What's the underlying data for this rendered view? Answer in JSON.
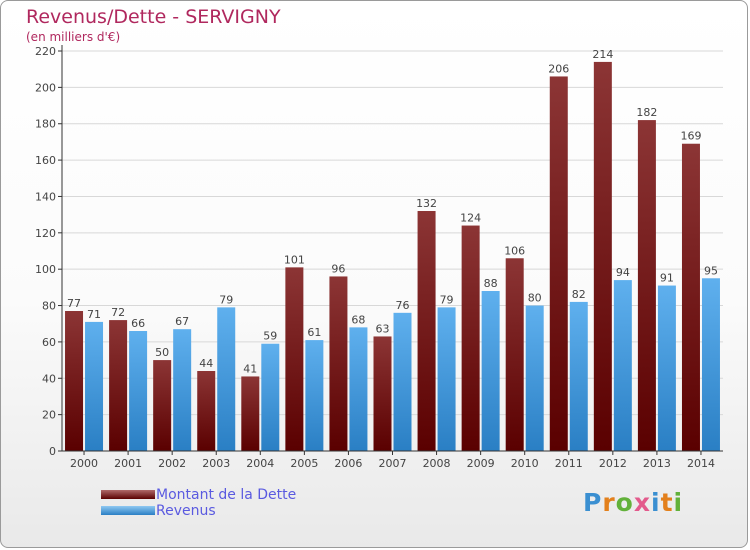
{
  "title": "Revenus/Dette - SERVIGNY",
  "subtitle": "(en milliers d'€)",
  "logo": {
    "text": "Proxiti",
    "letter_colors": [
      "#3a8fd1",
      "#e3801c",
      "#62b13a",
      "#e35a8c",
      "#3a8fd1",
      "#e3801c",
      "#62b13a"
    ]
  },
  "colors": {
    "dette": "#7a1414",
    "dette_light": "#8c3030",
    "revenus": "#3b95de",
    "revenus_light": "#5fb0ee",
    "grid": "#d8d8d8",
    "axis": "#333333",
    "label": "#444444"
  },
  "chart_data": {
    "type": "bar",
    "title": "Revenus/Dette - SERVIGNY",
    "subtitle": "(en milliers d'€)",
    "xlabel": "",
    "ylabel": "",
    "categories": [
      "2000",
      "2001",
      "2002",
      "2003",
      "2004",
      "2005",
      "2006",
      "2007",
      "2008",
      "2009",
      "2010",
      "2011",
      "2012",
      "2013",
      "2014"
    ],
    "series": [
      {
        "name": "Montant de la Dette",
        "values": [
          77,
          72,
          50,
          44,
          41,
          101,
          96,
          63,
          132,
          124,
          106,
          206,
          214,
          182,
          169
        ]
      },
      {
        "name": "Revenus",
        "values": [
          71,
          66,
          67,
          79,
          59,
          61,
          68,
          76,
          79,
          88,
          80,
          82,
          94,
          91,
          95
        ]
      }
    ],
    "ylim": [
      0,
      220
    ],
    "yticks": [
      0,
      20,
      40,
      60,
      80,
      100,
      120,
      140,
      160,
      180,
      200,
      220
    ],
    "grid": true,
    "legend_position": "bottom-left"
  }
}
